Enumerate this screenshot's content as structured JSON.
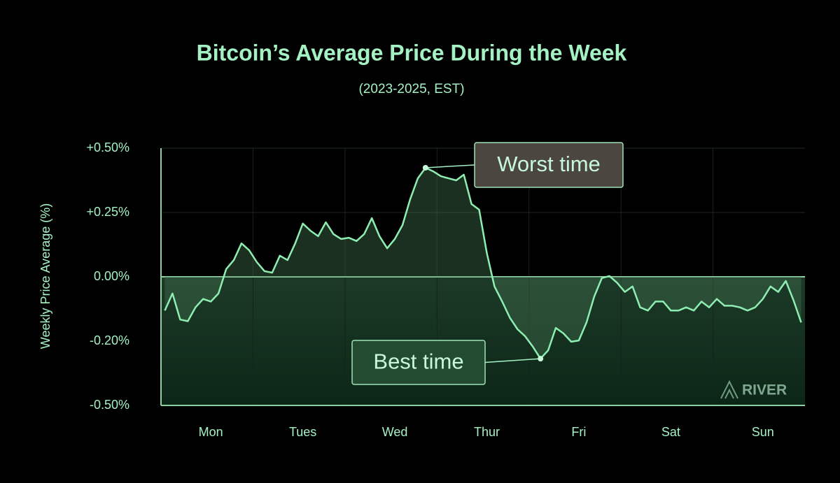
{
  "chart_data": {
    "type": "line",
    "title": "Bitcoin’s Average Price During the Week",
    "subtitle": "(2023-2025, EST)",
    "y_label": "Weekly Price Average (%)",
    "watermark": "RIVER",
    "categories": [
      null,
      null,
      null,
      null,
      null,
      null,
      "Mon",
      null,
      null,
      null,
      null,
      null,
      null,
      null,
      null,
      null,
      null,
      null,
      "Tues",
      null,
      null,
      null,
      null,
      null,
      null,
      null,
      null,
      null,
      null,
      null,
      "Wed",
      null,
      null,
      null,
      null,
      null,
      null,
      null,
      null,
      null,
      null,
      null,
      "Thur",
      null,
      null,
      null,
      null,
      null,
      null,
      null,
      null,
      null,
      null,
      null,
      "Fri",
      null,
      null,
      null,
      null,
      null,
      null,
      null,
      null,
      null,
      null,
      null,
      "Sat",
      null,
      null,
      null,
      null,
      null,
      null,
      null,
      null,
      null,
      null,
      null,
      "Sun",
      null,
      null,
      null,
      null,
      null
    ],
    "values": [
      -0.105,
      -0.052,
      -0.133,
      -0.138,
      -0.095,
      -0.069,
      -0.077,
      -0.052,
      0.03,
      0.065,
      0.13,
      0.103,
      0.057,
      0.022,
      0.016,
      0.082,
      0.065,
      0.13,
      0.207,
      0.179,
      0.158,
      0.212,
      0.166,
      0.147,
      0.152,
      0.139,
      0.166,
      0.228,
      0.158,
      0.111,
      0.147,
      0.201,
      0.302,
      0.383,
      0.424,
      0.41,
      0.391,
      0.383,
      0.375,
      0.397,
      0.283,
      0.261,
      0.092,
      -0.03,
      -0.077,
      -0.127,
      -0.163,
      -0.185,
      -0.226,
      -0.282,
      -0.243,
      -0.159,
      -0.176,
      -0.203,
      -0.198,
      -0.142,
      -0.062,
      -0.004,
      0.003,
      -0.019,
      -0.047,
      -0.03,
      -0.095,
      -0.105,
      -0.077,
      -0.077,
      -0.105,
      -0.105,
      -0.095,
      -0.105,
      -0.077,
      -0.095,
      -0.069,
      -0.09,
      -0.09,
      -0.095,
      -0.105,
      -0.095,
      -0.069,
      -0.03,
      -0.047,
      -0.013,
      -0.073,
      -0.142
    ],
    "color": "#8eeeb2",
    "ylim": [
      -0.5,
      0.5
    ],
    "yticks": [
      {
        "value": -0.5,
        "label": "-0.50%"
      },
      {
        "value": -0.2,
        "label": "-0.20%"
      },
      {
        "value": 0,
        "label": "0.00%"
      },
      {
        "value": 0.25,
        "label": "+0.25%"
      },
      {
        "value": 0.5,
        "label": "+0.50%"
      }
    ],
    "grid": true,
    "annotations": {
      "max": "Worst time",
      "min": "Best time"
    }
  }
}
